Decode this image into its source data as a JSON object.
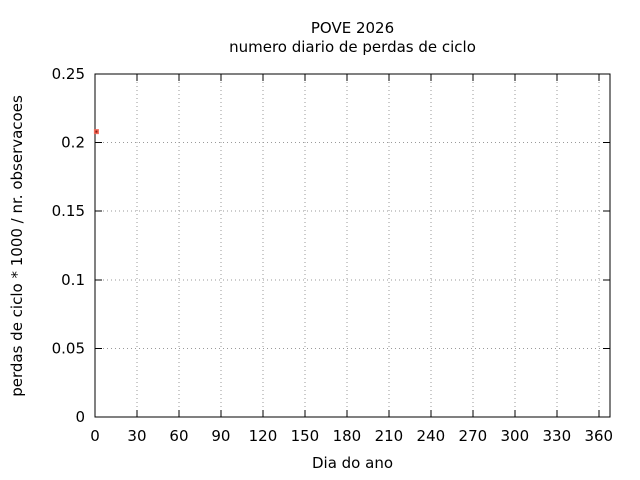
{
  "window": {
    "background": "#ffffff"
  },
  "chart_data": {
    "type": "scatter",
    "title": "POVE 2026",
    "subtitle": "numero diario de perdas de ciclo",
    "xlabel": "Dia do ano",
    "ylabel": "perdas de ciclo * 1000 / nr. observacoes",
    "xlim": [
      0,
      368
    ],
    "ylim": [
      0,
      0.25
    ],
    "xticks": [
      0,
      30,
      60,
      90,
      120,
      150,
      180,
      210,
      240,
      270,
      300,
      330,
      360
    ],
    "xtick_labels": [
      "0",
      "30",
      "60",
      "90",
      "120",
      "150",
      "180",
      "210",
      "240",
      "270",
      "300",
      "330",
      "360"
    ],
    "yticks": [
      0,
      0.05,
      0.1,
      0.15,
      0.2,
      0.25
    ],
    "ytick_labels": [
      "0",
      "0.05",
      "0.1",
      "0.15",
      "0.2",
      "0.25"
    ],
    "grid": "dotted",
    "legend": "none",
    "series": [
      {
        "marker": "filled-square",
        "color": "#f0695a",
        "core_color": "#8f1a0d",
        "points": [
          [
            1,
            0.208
          ]
        ]
      }
    ],
    "colors": {
      "axis": "#000000",
      "grid": "#9a9a9a",
      "text": "#000000"
    }
  }
}
